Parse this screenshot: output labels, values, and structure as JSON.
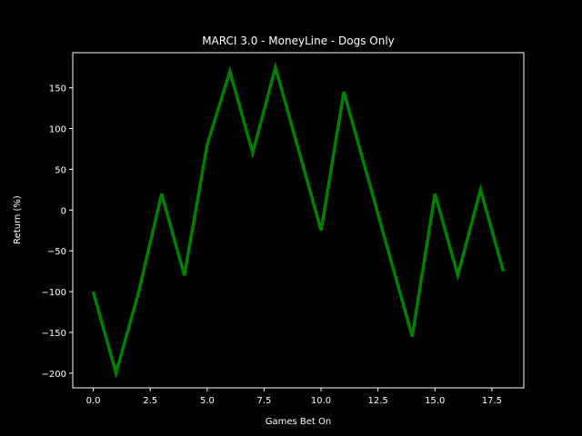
{
  "chart_data": {
    "type": "line",
    "title": "MARCI 3.0 - MoneyLine - Dogs Only",
    "xlabel": "Games Bet On",
    "ylabel": "Return (%)",
    "xlim": [
      -0.9,
      18.9
    ],
    "ylim": [
      -218,
      193
    ],
    "x_ticks": [
      0,
      2.5,
      5,
      7.5,
      10,
      12.5,
      15,
      17.5
    ],
    "x_tick_labels": [
      "0.0",
      "2.5",
      "5.0",
      "7.5",
      "10.0",
      "12.5",
      "15.0",
      "17.5"
    ],
    "y_ticks": [
      150,
      100,
      50,
      0,
      -50,
      -100,
      -150,
      -200
    ],
    "y_tick_labels": [
      "150",
      "100",
      "50",
      "0",
      "−50",
      "−100",
      "−150",
      "−200"
    ],
    "grid": false,
    "series": [
      {
        "color": "#008000",
        "x": [
          0,
          1,
          2,
          3,
          4,
          5,
          6,
          7,
          8,
          9,
          10,
          11,
          12,
          13,
          14,
          15,
          16,
          17,
          18
        ],
        "y": [
          -100,
          -200,
          -100,
          20,
          -80,
          80,
          170,
          70,
          175,
          75,
          -25,
          145,
          45,
          -55,
          -155,
          20,
          -80,
          25,
          -75
        ]
      }
    ]
  },
  "colors": {
    "background": "#000000",
    "axes_foreground": "#ffffff",
    "line": "#008000"
  }
}
